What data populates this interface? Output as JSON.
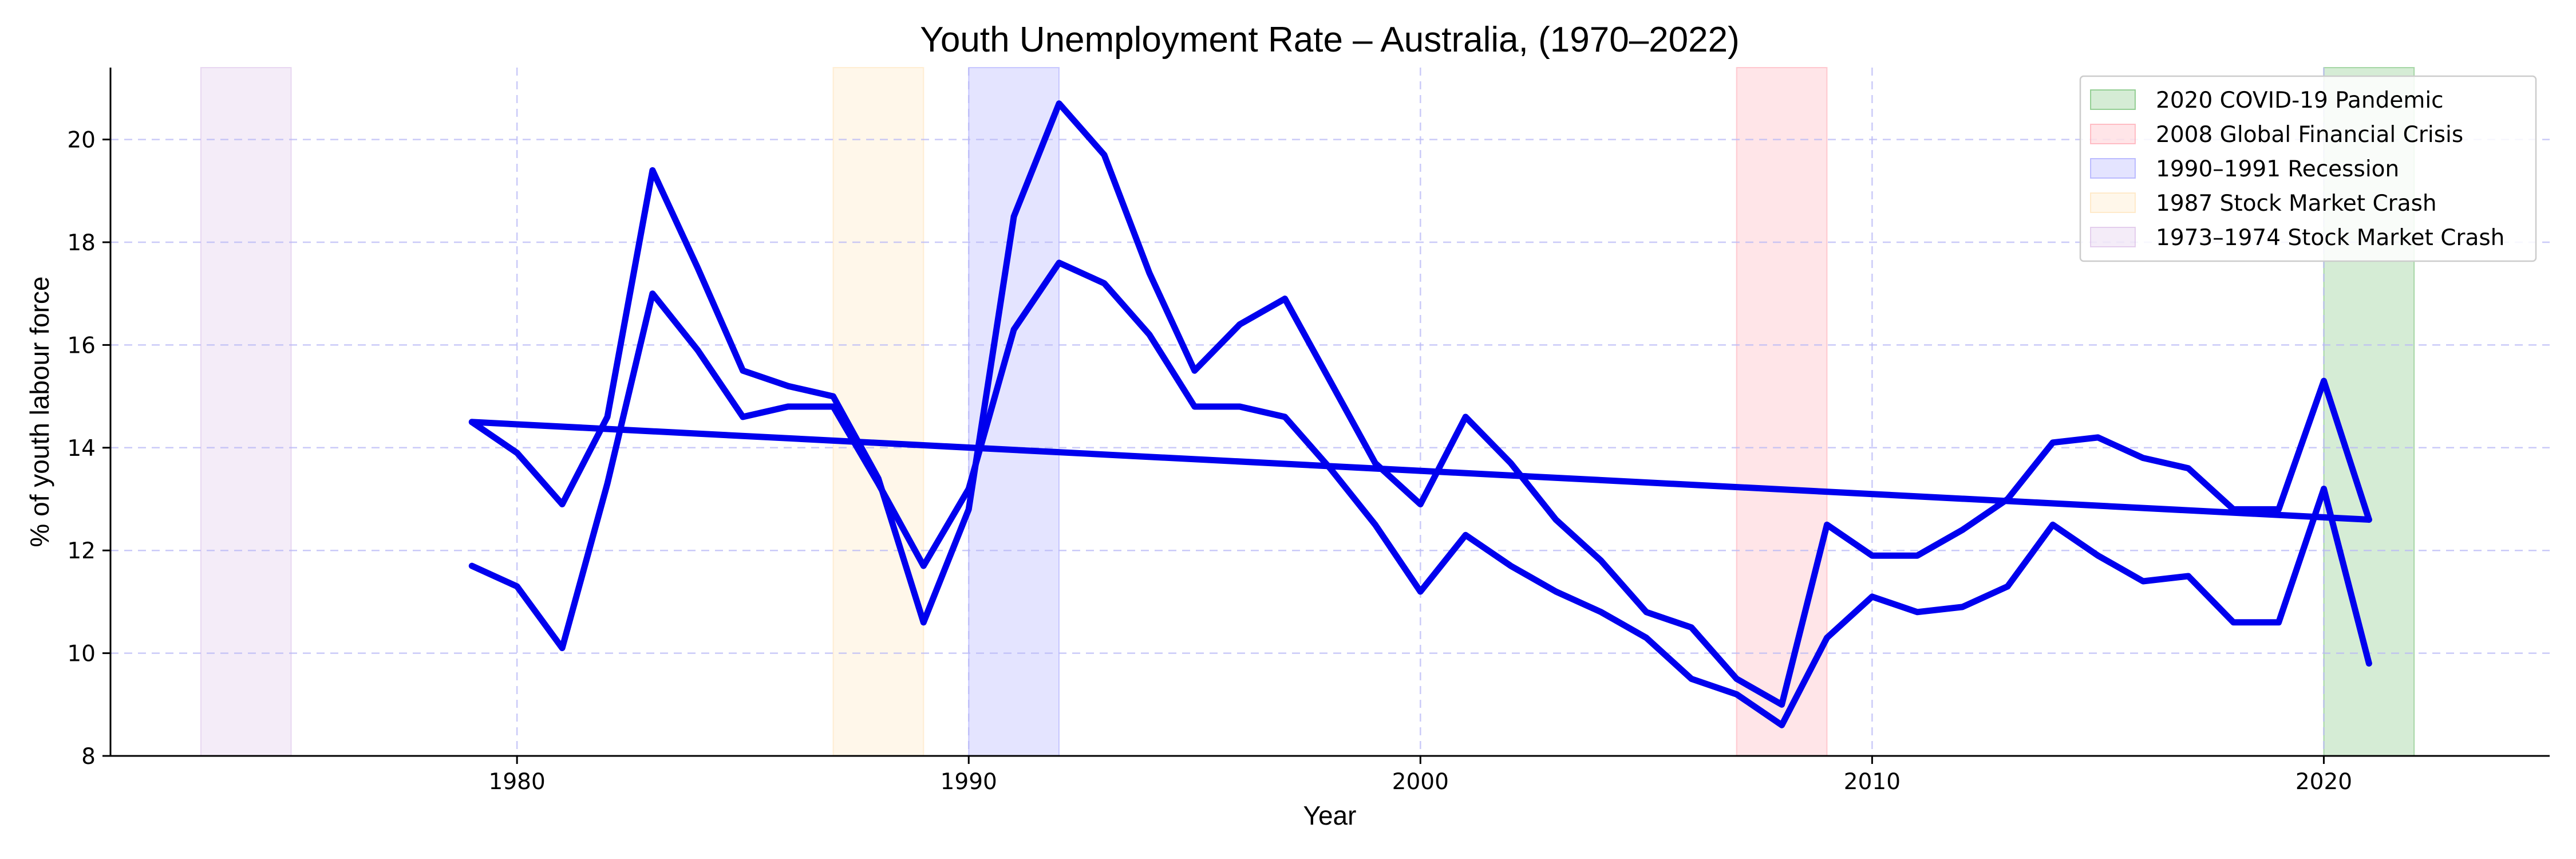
{
  "chart_data": {
    "type": "line",
    "title": "Youth Unemployment Rate – Australia, (1970–2022)",
    "xlabel": "Year",
    "ylabel": "% of youth labour force",
    "xlim": [
      1971,
      2025
    ],
    "ylim": [
      8,
      21.4
    ],
    "x_ticks": [
      1980,
      1990,
      2000,
      2010,
      2020
    ],
    "y_ticks": [
      8,
      10,
      12,
      14,
      16,
      18,
      20
    ],
    "grid": true,
    "legend_position": "top-right",
    "line_color": "#0000ee",
    "series": [
      {
        "x": [
          1979,
          1980,
          1981,
          1982,
          1983,
          1984,
          1985,
          1986,
          1987,
          1988,
          1989,
          1990,
          1991,
          1992,
          1993,
          1994,
          1995,
          1996,
          1997,
          1998,
          1999,
          2000,
          2001,
          2002,
          2003,
          2004,
          2005,
          2006,
          2007,
          2008,
          2009,
          2010,
          2011,
          2012,
          2013,
          2014,
          2015,
          2016,
          2017,
          2018,
          2019,
          2020,
          2021
        ],
        "values": [
          14.5,
          13.9,
          12.9,
          14.6,
          19.4,
          17.5,
          15.5,
          15.2,
          15.0,
          13.4,
          10.6,
          12.8,
          18.5,
          20.7,
          19.7,
          17.4,
          15.5,
          16.4,
          16.9,
          15.3,
          13.7,
          12.9,
          14.6,
          13.7,
          12.6,
          11.8,
          10.8,
          10.5,
          9.5,
          9.0,
          12.5,
          11.9,
          11.9,
          12.4,
          13.0,
          14.1,
          14.2,
          13.8,
          13.6,
          12.8,
          12.8,
          15.3,
          12.6
        ]
      },
      {
        "x": [
          1979,
          1980,
          1981,
          1982,
          1983,
          1984,
          1985,
          1986,
          1987,
          1988,
          1989,
          1990,
          1991,
          1992,
          1993,
          1994,
          1995,
          1996,
          1997,
          1998,
          1999,
          2000,
          2001,
          2002,
          2003,
          2004,
          2005,
          2006,
          2007,
          2008,
          2009,
          2010,
          2011,
          2012,
          2013,
          2014,
          2015,
          2016,
          2017,
          2018,
          2019,
          2020,
          2021
        ],
        "values": [
          11.7,
          11.3,
          10.1,
          13.3,
          17.0,
          15.9,
          14.6,
          14.8,
          14.8,
          13.3,
          11.7,
          13.2,
          16.3,
          17.6,
          17.2,
          16.2,
          14.8,
          14.8,
          14.6,
          13.6,
          12.5,
          11.2,
          12.3,
          11.7,
          11.2,
          10.8,
          10.3,
          9.5,
          9.2,
          8.6,
          10.3,
          11.1,
          10.8,
          10.9,
          11.3,
          12.5,
          11.9,
          11.4,
          11.5,
          10.6,
          10.6,
          13.2,
          9.8
        ]
      },
      {
        "x": [
          1979,
          2021
        ],
        "values": [
          14.5,
          12.6
        ]
      }
    ],
    "shaded_periods": [
      {
        "label": "2020 COVID-19 Pandemic",
        "start": 2020,
        "end": 2022,
        "color": "#2ca02c"
      },
      {
        "label": "2008 Global Financial Crisis",
        "start": 2007,
        "end": 2009,
        "color": "#ff7c8c"
      },
      {
        "label": "1990–1991 Recession",
        "start": 1990,
        "end": 1992,
        "color": "#7a7aff"
      },
      {
        "label": "1987 Stock Market Crash",
        "start": 1987,
        "end": 1989,
        "color": "#ffd596"
      },
      {
        "label": "1973–1974 Stock Market Crash",
        "start": 1973,
        "end": 1975,
        "color": "#c9a0dc"
      }
    ]
  }
}
